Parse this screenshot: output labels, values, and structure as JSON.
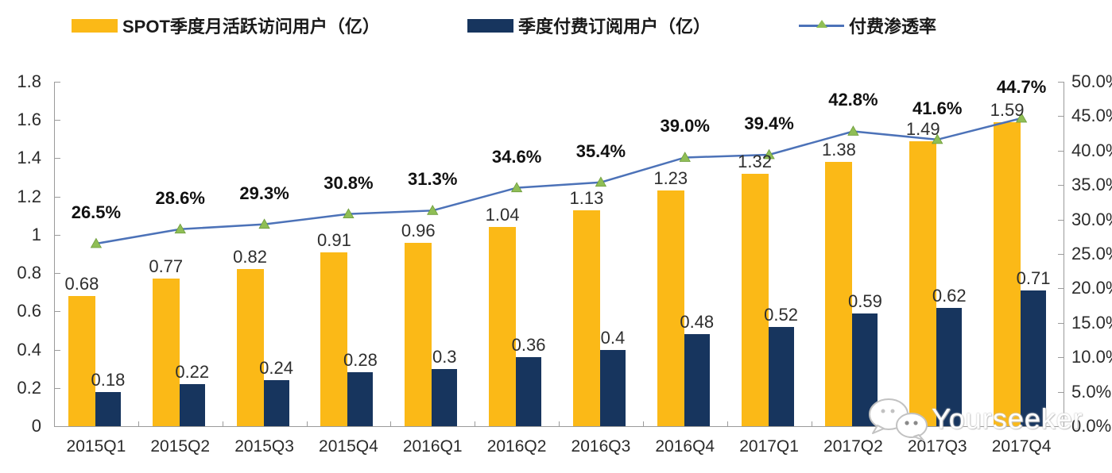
{
  "legend": {
    "mau_label": "SPOT季度月活跃访问用户（亿）",
    "subs_label": "季度付费订阅用户（亿）",
    "penetration_label": "付费渗透率"
  },
  "watermark": {
    "text": "Yourseeker",
    "icon": "wechat-icon"
  },
  "colors": {
    "mau_bar": "#FBB917",
    "subs_bar": "#17355E",
    "line": "#4C72B8",
    "marker": "#8FBE55",
    "marker_edge": "#6E9C3C",
    "axis": "#9b9b9b"
  },
  "chart_data": {
    "type": "bar+line",
    "categories": [
      "2015Q1",
      "2015Q2",
      "2015Q3",
      "2015Q4",
      "2016Q1",
      "2016Q2",
      "2016Q3",
      "2016Q4",
      "2017Q1",
      "2017Q2",
      "2017Q3",
      "2017Q4"
    ],
    "series": [
      {
        "name": "SPOT季度月活跃访问用户（亿）",
        "type": "bar",
        "axis": "left",
        "values": [
          0.68,
          0.77,
          0.82,
          0.91,
          0.96,
          1.04,
          1.13,
          1.23,
          1.32,
          1.38,
          1.49,
          1.59
        ],
        "labels": [
          "0.68",
          "0.77",
          "0.82",
          "0.91",
          "0.96",
          "1.04",
          "1.13",
          "1.23",
          "1.32",
          "1.38",
          "1.49",
          "1.59"
        ]
      },
      {
        "name": "季度付费订阅用户（亿）",
        "type": "bar",
        "axis": "left",
        "values": [
          0.18,
          0.22,
          0.24,
          0.28,
          0.3,
          0.36,
          0.4,
          0.48,
          0.52,
          0.59,
          0.62,
          0.71
        ],
        "labels": [
          "0.18",
          "0.22",
          "0.24",
          "0.28",
          "0.3",
          "0.36",
          "0.4",
          "0.48",
          "0.52",
          "0.59",
          "0.62",
          "0.71"
        ]
      },
      {
        "name": "付费渗透率",
        "type": "line",
        "axis": "right",
        "values": [
          26.5,
          28.6,
          29.3,
          30.8,
          31.3,
          34.6,
          35.4,
          39.0,
          39.4,
          42.8,
          41.6,
          44.7
        ],
        "labels": [
          "26.5%",
          "28.6%",
          "29.3%",
          "30.8%",
          "31.3%",
          "34.6%",
          "35.4%",
          "39.0%",
          "39.4%",
          "42.8%",
          "41.6%",
          "44.7%"
        ]
      }
    ],
    "left_axis": {
      "min": 0,
      "max": 1.8,
      "tick_step": 0.2,
      "ticks": [
        "0",
        "0.2",
        "0.4",
        "0.6",
        "0.8",
        "1",
        "1.2",
        "1.4",
        "1.6",
        "1.8"
      ]
    },
    "right_axis": {
      "min": 0,
      "max": 50,
      "tick_step": 5,
      "ticks": [
        "0.0%",
        "5.0%",
        "10.0%",
        "15.0%",
        "20.0%",
        "25.0%",
        "30.0%",
        "35.0%",
        "40.0%",
        "45.0%",
        "50.0%"
      ]
    },
    "grid": false,
    "legend_position": "top"
  }
}
